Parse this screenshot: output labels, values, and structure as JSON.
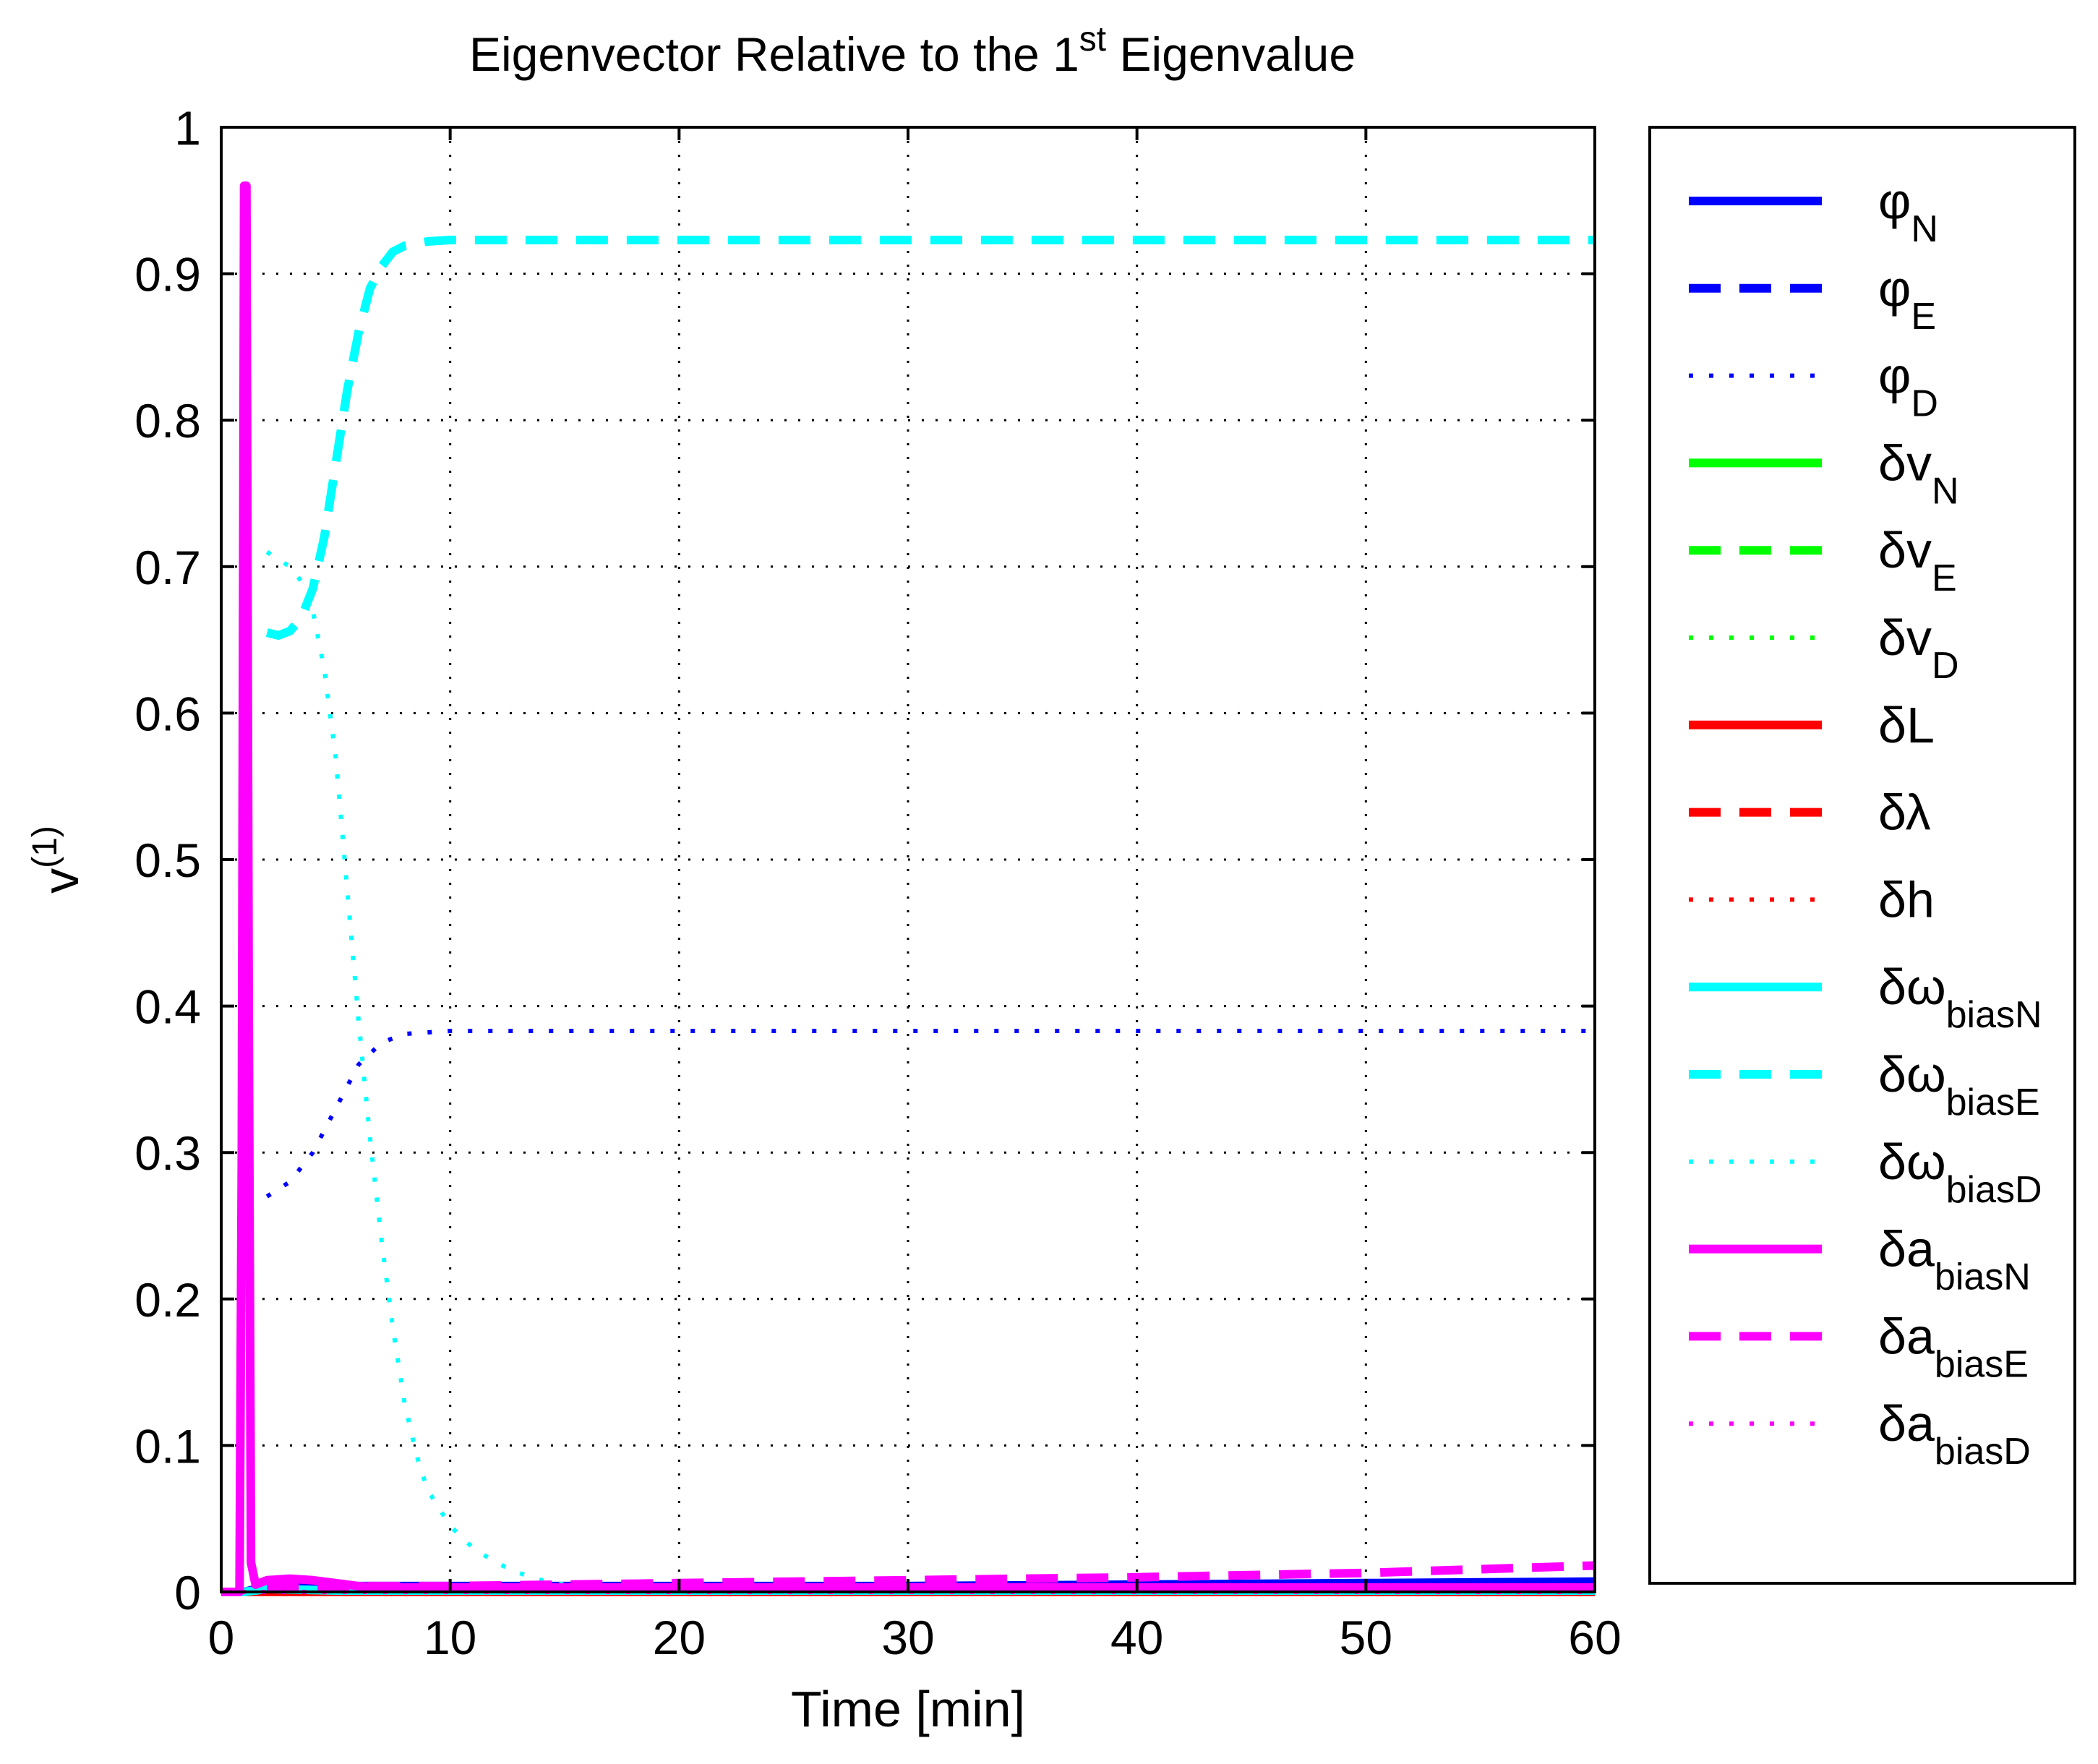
{
  "chart_data": {
    "type": "line",
    "title_main": "Eigenvector Relative to the 1",
    "title_sup": "st",
    "title_end": " Eigenvalue",
    "xlabel": "Time [min]",
    "ylabel_main": "v",
    "ylabel_sup": "(1)",
    "xlim": [
      0,
      60
    ],
    "ylim": [
      0,
      1
    ],
    "xticks": [
      0,
      10,
      20,
      30,
      40,
      50,
      60
    ],
    "yticks": [
      0,
      0.1,
      0.2,
      0.3,
      0.4,
      0.5,
      0.6,
      0.7,
      0.8,
      0.9,
      1
    ],
    "grid": true,
    "legend_position": "outside-right",
    "series": [
      {
        "name": "φ",
        "sub": "N",
        "color": "#0000ff",
        "style": "solid",
        "x": [
          0,
          1,
          2,
          3,
          5,
          10,
          20,
          30,
          40,
          50,
          60
        ],
        "y": [
          0,
          0,
          0.004,
          0.004,
          0.004,
          0.004,
          0.004,
          0.004,
          0.005,
          0.006,
          0.007
        ]
      },
      {
        "name": "φ",
        "sub": "E",
        "color": "#0000ff",
        "style": "dashed",
        "x": [
          0,
          1,
          2,
          10,
          30,
          60
        ],
        "y": [
          0,
          0,
          0.002,
          0.002,
          0.002,
          0.003
        ]
      },
      {
        "name": "φ",
        "sub": "D",
        "color": "#0000ff",
        "style": "dotted",
        "x": [
          2,
          3,
          4,
          5,
          6,
          7,
          8,
          10,
          15,
          20,
          30,
          40,
          50,
          60
        ],
        "y": [
          0.27,
          0.28,
          0.3,
          0.33,
          0.36,
          0.375,
          0.381,
          0.383,
          0.383,
          0.383,
          0.383,
          0.383,
          0.383,
          0.383
        ]
      },
      {
        "name": "δv",
        "sub": "N",
        "color": "#00ff00",
        "style": "solid",
        "x": [
          0,
          60
        ],
        "y": [
          0,
          0
        ]
      },
      {
        "name": "δv",
        "sub": "E",
        "color": "#00ff00",
        "style": "dashed",
        "x": [
          0,
          60
        ],
        "y": [
          0,
          0
        ]
      },
      {
        "name": "δv",
        "sub": "D",
        "color": "#00ff00",
        "style": "dotted",
        "x": [
          0,
          60
        ],
        "y": [
          0,
          0
        ]
      },
      {
        "name": "δL",
        "sub": "",
        "color": "#ff0000",
        "style": "solid",
        "x": [
          0,
          60
        ],
        "y": [
          0,
          0
        ]
      },
      {
        "name": "δλ",
        "sub": "",
        "color": "#ff0000",
        "style": "dashed",
        "x": [
          0,
          60
        ],
        "y": [
          0,
          0
        ]
      },
      {
        "name": "δh",
        "sub": "",
        "color": "#ff0000",
        "style": "dotted",
        "x": [
          0,
          60
        ],
        "y": [
          0,
          0
        ]
      },
      {
        "name": "δω",
        "sub": "biasN",
        "color": "#00ffff",
        "style": "solid",
        "x": [
          0,
          1,
          2,
          5,
          10,
          30,
          60
        ],
        "y": [
          0,
          0,
          0.002,
          0.001,
          0.001,
          0.001,
          0.001
        ]
      },
      {
        "name": "δω",
        "sub": "biasE",
        "color": "#00ffff",
        "style": "dashed",
        "x": [
          2,
          2.5,
          3,
          3.5,
          4,
          4.5,
          5,
          5.5,
          6,
          6.5,
          7,
          7.5,
          8,
          9,
          10,
          12,
          15,
          20,
          30,
          40,
          50,
          60
        ],
        "y": [
          0.655,
          0.653,
          0.656,
          0.665,
          0.685,
          0.72,
          0.77,
          0.82,
          0.86,
          0.89,
          0.905,
          0.915,
          0.919,
          0.922,
          0.923,
          0.923,
          0.923,
          0.923,
          0.923,
          0.923,
          0.923,
          0.923
        ]
      },
      {
        "name": "δω",
        "sub": "biasD",
        "color": "#00ffff",
        "style": "dotted",
        "x": [
          2,
          2.5,
          3,
          3.5,
          4,
          4.5,
          5,
          5.5,
          6,
          6.5,
          7,
          7.5,
          8,
          8.5,
          9,
          10,
          11,
          12,
          13,
          14,
          15
        ],
        "y": [
          0.71,
          0.705,
          0.7,
          0.69,
          0.67,
          0.63,
          0.57,
          0.48,
          0.39,
          0.31,
          0.24,
          0.18,
          0.13,
          0.095,
          0.07,
          0.045,
          0.03,
          0.02,
          0.013,
          0.008,
          0.005
        ]
      },
      {
        "name": "δa",
        "sub": "biasN",
        "color": "#ff00ff",
        "style": "solid",
        "x": [
          0,
          0.8,
          0.9,
          1.0,
          1.1,
          1.2,
          1.3,
          1.5,
          2,
          3,
          4,
          5,
          6,
          7,
          10,
          20,
          40,
          60
        ],
        "y": [
          0,
          0,
          0.3,
          0.96,
          0.96,
          0.4,
          0.02,
          0.005,
          0.008,
          0.009,
          0.008,
          0.006,
          0.004,
          0.003,
          0.003,
          0.003,
          0.003,
          0.003
        ]
      },
      {
        "name": "δa",
        "sub": "biasE",
        "color": "#ff00ff",
        "style": "dashed",
        "x": [
          2,
          5,
          7,
          10,
          20,
          30,
          40,
          50,
          60
        ],
        "y": [
          0.004,
          0.004,
          0.004,
          0.004,
          0.006,
          0.008,
          0.01,
          0.013,
          0.018
        ]
      },
      {
        "name": "δa",
        "sub": "biasD",
        "color": "#ff00ff",
        "style": "dotted",
        "x": [
          0,
          60
        ],
        "y": [
          0,
          0
        ]
      }
    ]
  }
}
